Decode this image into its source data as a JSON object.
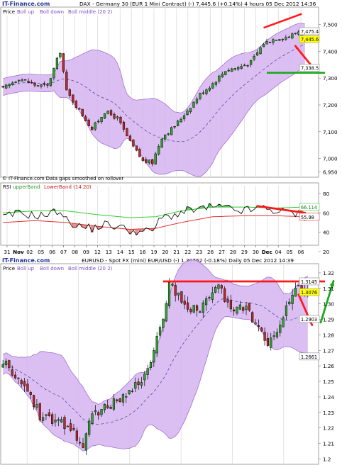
{
  "colors": {
    "band_fill": "#d6b4f0",
    "band_line": "#a070d0",
    "middle_line": "#5050a0",
    "up_candle": "#2fa82f",
    "down_candle": "#c02828",
    "annot_red": "#ff1a1a",
    "annot_green": "#1fa81f",
    "rsi_upper": "#33cc33",
    "rsi_lower": "#dd3333",
    "price_tag_yellow": "#ffff00"
  },
  "chart_data": [
    {
      "id": "dax",
      "type": "candlestick",
      "brand": "IT-Finance.com",
      "title": "DAX - Germany 30 (EUR 1 Mini Contract) (-)   7,445.6 (+0.14%)   4 hours  05 Dec 2012 14:36",
      "legend": [
        "Price",
        "Boll up",
        "Boll down",
        "Boll middle (20 2)"
      ],
      "ylim": [
        6930,
        7560
      ],
      "y_ticks": [
        "7,500",
        "7,400",
        "7,300",
        "7,200",
        "7,100",
        "7,000",
        "6,950"
      ],
      "y_tick_values": [
        7500,
        7400,
        7300,
        7200,
        7100,
        7000,
        6950
      ],
      "price_tags": [
        {
          "label": "7,475.4",
          "value": 7475.4,
          "style": "plain"
        },
        {
          "label": "7,445.6",
          "value": 7445.6,
          "style": "yellow"
        },
        {
          "label": "7,338.5",
          "value": 7338.5,
          "style": "plain"
        }
      ],
      "footer_note": "© IT-Finance.com  Data gaps smoothed on rollover",
      "n_bars": 96,
      "close_anchors": [
        [
          0,
          7260
        ],
        [
          5,
          7300
        ],
        [
          10,
          7275
        ],
        [
          14,
          7270
        ],
        [
          18,
          7400
        ],
        [
          20,
          7250
        ],
        [
          24,
          7180
        ],
        [
          28,
          7110
        ],
        [
          32,
          7175
        ],
        [
          36,
          7150
        ],
        [
          40,
          7060
        ],
        [
          44,
          6990
        ],
        [
          47,
          6985
        ],
        [
          50,
          7080
        ],
        [
          54,
          7120
        ],
        [
          58,
          7180
        ],
        [
          62,
          7240
        ],
        [
          66,
          7280
        ],
        [
          70,
          7330
        ],
        [
          74,
          7340
        ],
        [
          78,
          7360
        ],
        [
          82,
          7430
        ],
        [
          86,
          7450
        ],
        [
          90,
          7455
        ],
        [
          93,
          7475
        ],
        [
          95,
          7445.6
        ]
      ],
      "annotations": {
        "red_trendline": [
          [
            82,
            7488
          ],
          [
            94,
            7540
          ]
        ],
        "red_arrow": {
          "from": [
            92,
            7420
          ],
          "to": [
            96,
            7340
          ]
        },
        "green_line": {
          "x_range": [
            83,
            96
          ],
          "y": 7320
        }
      }
    },
    {
      "id": "rsi",
      "type": "line",
      "legend": [
        "RSI",
        "upperBand",
        "LowerBand (14 20)"
      ],
      "ylim": [
        28,
        88
      ],
      "y_ticks": [
        "80",
        "60",
        "40",
        "20"
      ],
      "y_tick_values": [
        80,
        60,
        40,
        20
      ],
      "value_tags": [
        {
          "label": "66.114",
          "value": 66.114,
          "style": "green"
        },
        {
          "label": "55.98",
          "value": 55.98,
          "style": "red"
        }
      ],
      "rsi_anchors": [
        [
          0,
          55
        ],
        [
          5,
          60
        ],
        [
          10,
          57
        ],
        [
          14,
          58
        ],
        [
          18,
          63
        ],
        [
          20,
          52
        ],
        [
          24,
          46
        ],
        [
          28,
          44
        ],
        [
          32,
          48
        ],
        [
          36,
          46
        ],
        [
          40,
          42
        ],
        [
          44,
          40
        ],
        [
          47,
          42
        ],
        [
          50,
          55
        ],
        [
          54,
          58
        ],
        [
          58,
          62
        ],
        [
          62,
          64
        ],
        [
          66,
          66
        ],
        [
          70,
          65
        ],
        [
          74,
          62
        ],
        [
          78,
          63
        ],
        [
          82,
          65
        ],
        [
          86,
          62
        ],
        [
          90,
          60
        ],
        [
          93,
          59
        ],
        [
          95,
          56
        ]
      ],
      "upper_anchors": [
        [
          0,
          60
        ],
        [
          10,
          62
        ],
        [
          20,
          62
        ],
        [
          30,
          58
        ],
        [
          40,
          55
        ],
        [
          48,
          56
        ],
        [
          56,
          62
        ],
        [
          66,
          66
        ],
        [
          76,
          66
        ],
        [
          86,
          65
        ],
        [
          95,
          66
        ]
      ],
      "lower_anchors": [
        [
          0,
          50
        ],
        [
          10,
          52
        ],
        [
          20,
          50
        ],
        [
          30,
          46
        ],
        [
          40,
          43
        ],
        [
          48,
          44
        ],
        [
          56,
          50
        ],
        [
          66,
          56
        ],
        [
          76,
          57
        ],
        [
          86,
          57
        ],
        [
          95,
          56
        ]
      ],
      "annotations": {
        "red_trendline": [
          [
            80,
            67
          ],
          [
            95,
            60
          ]
        ]
      },
      "x_axis": {
        "labels": [
          "31",
          "Nov",
          "02",
          "05",
          "06",
          "07",
          "08",
          "09",
          "12",
          "13",
          "14",
          "15",
          "16",
          "19",
          "20",
          "21",
          "22",
          "23",
          "26",
          "27",
          "28",
          "29",
          "30",
          "Dec",
          "04",
          "05",
          "06"
        ]
      }
    },
    {
      "id": "eurusd",
      "type": "candlestick",
      "brand": "IT-Finance.com",
      "title": "EURUSD - Spot FX (mini) EUR/USD (-)   1.30762 (-0.18%)   Daily  05 Dec 2012 14:39",
      "legend": [
        "Price",
        "Boll up",
        "Boll down",
        "Boll middle (20 2)"
      ],
      "ylim": [
        1.197,
        1.325
      ],
      "y_ticks": [
        "1.32",
        "1.31",
        "1.30",
        "1.29",
        "1.28",
        "1.27",
        "1.26",
        "1.25",
        "1.24",
        "1.23",
        "1.22",
        "1.21",
        "1.2"
      ],
      "y_tick_values": [
        1.32,
        1.31,
        1.3,
        1.29,
        1.28,
        1.27,
        1.26,
        1.25,
        1.24,
        1.23,
        1.22,
        1.21,
        1.2
      ],
      "price_tags": [
        {
          "label": "1.3145",
          "value": 1.3145,
          "style": "plain"
        },
        {
          "label": "1.3076",
          "value": 1.3076,
          "style": "yellow"
        },
        {
          "label": "1.2903",
          "value": 1.2903,
          "style": "plain"
        },
        {
          "label": "1.2661",
          "value": 1.2661,
          "style": "plain"
        }
      ],
      "n_bars": 100,
      "close_anchors": [
        [
          0,
          1.262
        ],
        [
          4,
          1.255
        ],
        [
          8,
          1.244
        ],
        [
          12,
          1.228
        ],
        [
          16,
          1.225
        ],
        [
          20,
          1.222
        ],
        [
          24,
          1.215
        ],
        [
          26,
          1.207
        ],
        [
          28,
          1.225
        ],
        [
          32,
          1.232
        ],
        [
          36,
          1.236
        ],
        [
          40,
          1.24
        ],
        [
          44,
          1.249
        ],
        [
          48,
          1.262
        ],
        [
          52,
          1.292
        ],
        [
          54,
          1.312
        ],
        [
          57,
          1.305
        ],
        [
          60,
          1.297
        ],
        [
          64,
          1.298
        ],
        [
          68,
          1.305
        ],
        [
          70,
          1.311
        ],
        [
          74,
          1.295
        ],
        [
          78,
          1.298
        ],
        [
          82,
          1.289
        ],
        [
          84,
          1.281
        ],
        [
          86,
          1.273
        ],
        [
          88,
          1.277
        ],
        [
          90,
          1.287
        ],
        [
          93,
          1.3
        ],
        [
          96,
          1.312
        ],
        [
          98,
          1.3076
        ]
      ],
      "annotations": {
        "red_resistance": {
          "x_range": [
            52,
            100
          ],
          "y": 1.3145
        },
        "red_arrow": {
          "from": [
            96,
            1.306
          ],
          "to": [
            99,
            1.29
          ]
        },
        "green_arrow": {
          "from": [
            100,
            1.288
          ],
          "to": [
            103,
            1.312
          ]
        }
      }
    }
  ]
}
